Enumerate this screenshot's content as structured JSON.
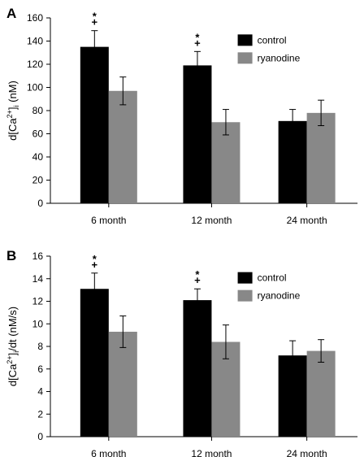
{
  "chart_data": [
    {
      "type": "bar",
      "panel": "A",
      "ylabel_main": "d[Ca",
      "ylabel_sup": "2+",
      "ylabel_mid": "]",
      "ylabel_sub": "i",
      "ylabel_end": " (nM)",
      "ylim": [
        0,
        160
      ],
      "yticks": [
        "0",
        "20",
        "40",
        "60",
        "80",
        "100",
        "120",
        "140",
        "160"
      ],
      "categories": [
        "6 month",
        "12 month",
        "24 month"
      ],
      "legend_position": "top-right",
      "series": [
        {
          "name": "control",
          "color": "#000000",
          "values": [
            135,
            119,
            71
          ],
          "errors": [
            14,
            12,
            10
          ]
        },
        {
          "name": "ryanodine",
          "color": "#888888",
          "values": [
            97,
            70,
            78
          ],
          "errors": [
            12,
            11,
            11
          ]
        }
      ],
      "annotations": [
        {
          "category_index": 0,
          "symbols": [
            "*",
            "+"
          ]
        },
        {
          "category_index": 1,
          "symbols": [
            "*",
            "+"
          ]
        }
      ]
    },
    {
      "type": "bar",
      "panel": "B",
      "ylabel_main": "d[Ca",
      "ylabel_sup": "2+",
      "ylabel_mid": "]",
      "ylabel_sub": "i",
      "ylabel_end": "/dt (nM/s)",
      "ylim": [
        0,
        16
      ],
      "yticks": [
        "0",
        "2",
        "4",
        "6",
        "8",
        "10",
        "12",
        "14",
        "16"
      ],
      "categories": [
        "6 month",
        "12 month",
        "24 month"
      ],
      "legend_position": "top-right",
      "series": [
        {
          "name": "control",
          "color": "#000000",
          "values": [
            13.1,
            12.1,
            7.2
          ],
          "errors": [
            1.4,
            1.0,
            1.3
          ]
        },
        {
          "name": "ryanodine",
          "color": "#888888",
          "values": [
            9.3,
            8.4,
            7.6
          ],
          "errors": [
            1.4,
            1.5,
            1.0
          ]
        }
      ],
      "annotations": [
        {
          "category_index": 0,
          "symbols": [
            "*",
            "+"
          ]
        },
        {
          "category_index": 1,
          "symbols": [
            "*",
            "+"
          ]
        }
      ]
    }
  ]
}
